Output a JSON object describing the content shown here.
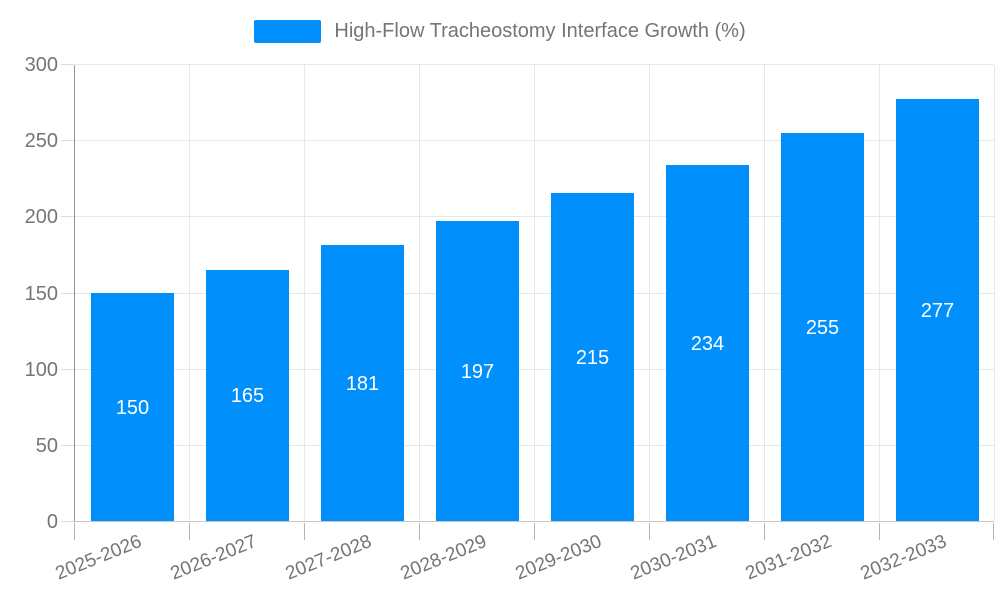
{
  "chart_data": {
    "type": "bar",
    "title": "High-Flow Tracheostomy Interface Growth (%)",
    "categories": [
      "2025-2026",
      "2026-2027",
      "2027-2028",
      "2028-2029",
      "2029-2030",
      "2030-2031",
      "2031-2032",
      "2032-2033"
    ],
    "values": [
      150,
      165,
      181,
      197,
      215,
      234,
      255,
      277
    ],
    "data_labels": [
      "150",
      "165",
      "181",
      "197",
      "215",
      "234",
      "255",
      "277"
    ],
    "ylim": [
      0,
      300
    ],
    "yticks": [
      0,
      50,
      100,
      150,
      200,
      250,
      300
    ],
    "ytick_labels": [
      "0",
      "50",
      "100",
      "150",
      "200",
      "250",
      "300"
    ],
    "legend_position": "top",
    "grid": "on",
    "xlabel": "",
    "ylabel": "",
    "colors": {
      "bar": "#008ffb",
      "bar_value_text": "#ffffff",
      "axis_text": "#757575",
      "gridline": "#e7e7e7",
      "y_axis_line": "#949494",
      "x_axis_line": "#c7c7c7",
      "tick": "#b3b3b3"
    }
  }
}
